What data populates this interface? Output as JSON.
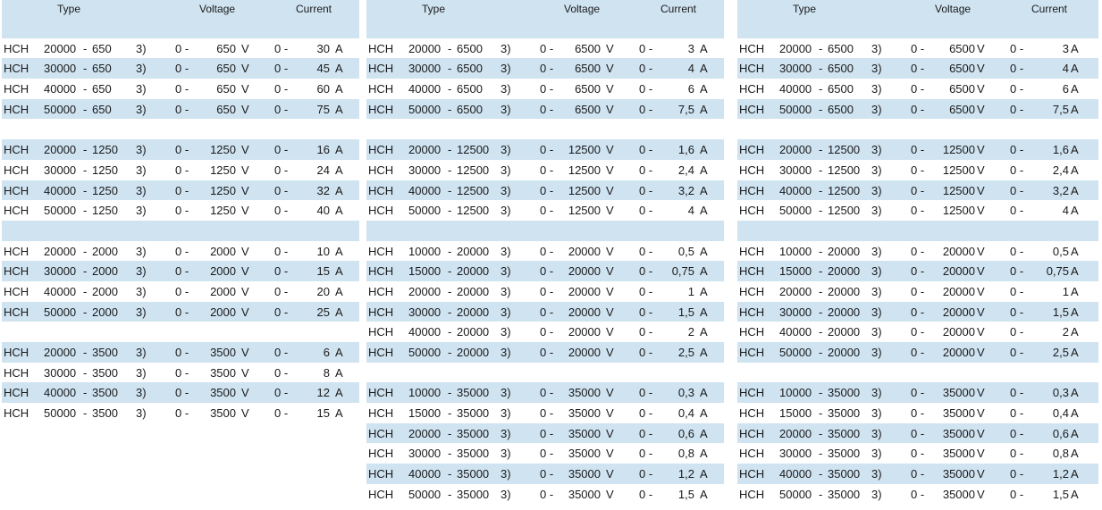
{
  "headers": {
    "type": "Type",
    "voltage": "Voltage",
    "current": "Current"
  },
  "panels": [
    {
      "rows": [
        {
          "k": "gap"
        },
        {
          "k": "data",
          "prefix": "HCH",
          "num": "20000",
          "dash": "-",
          "volt": "650",
          "suffix": "3)",
          "zero": "0 -",
          "vmax": "650",
          "vu": "V",
          "czero": "0 -",
          "cmax": "30",
          "cu": "A"
        },
        {
          "k": "data",
          "prefix": "HCH",
          "num": "30000",
          "dash": "-",
          "volt": "650",
          "suffix": "3)",
          "zero": "0 -",
          "vmax": "650",
          "vu": "V",
          "czero": "0 -",
          "cmax": "45",
          "cu": "A"
        },
        {
          "k": "data",
          "prefix": "HCH",
          "num": "40000",
          "dash": "-",
          "volt": "650",
          "suffix": "3)",
          "zero": "0 -",
          "vmax": "650",
          "vu": "V",
          "czero": "0 -",
          "cmax": "60",
          "cu": "A"
        },
        {
          "k": "data",
          "prefix": "HCH",
          "num": "50000",
          "dash": "-",
          "volt": "650",
          "suffix": "3)",
          "zero": "0 -",
          "vmax": "650",
          "vu": "V",
          "czero": "0 -",
          "cmax": "75",
          "cu": "A"
        },
        {
          "k": "gap"
        },
        {
          "k": "data",
          "prefix": "HCH",
          "num": "20000",
          "dash": "-",
          "volt": "1250",
          "suffix": "3)",
          "zero": "0 -",
          "vmax": "1250",
          "vu": "V",
          "czero": "0 -",
          "cmax": "16",
          "cu": "A"
        },
        {
          "k": "data",
          "prefix": "HCH",
          "num": "30000",
          "dash": "-",
          "volt": "1250",
          "suffix": "3)",
          "zero": "0 -",
          "vmax": "1250",
          "vu": "V",
          "czero": "0 -",
          "cmax": "24",
          "cu": "A"
        },
        {
          "k": "data",
          "prefix": "HCH",
          "num": "40000",
          "dash": "-",
          "volt": "1250",
          "suffix": "3)",
          "zero": "0 -",
          "vmax": "1250",
          "vu": "V",
          "czero": "0 -",
          "cmax": "32",
          "cu": "A"
        },
        {
          "k": "data",
          "prefix": "HCH",
          "num": "50000",
          "dash": "-",
          "volt": "1250",
          "suffix": "3)",
          "zero": "0 -",
          "vmax": "1250",
          "vu": "V",
          "czero": "0 -",
          "cmax": "40",
          "cu": "A"
        },
        {
          "k": "gap"
        },
        {
          "k": "data",
          "prefix": "HCH",
          "num": "20000",
          "dash": "-",
          "volt": "2000",
          "suffix": "3)",
          "zero": "0 -",
          "vmax": "2000",
          "vu": "V",
          "czero": "0 -",
          "cmax": "10",
          "cu": "A"
        },
        {
          "k": "data",
          "prefix": "HCH",
          "num": "30000",
          "dash": "-",
          "volt": "2000",
          "suffix": "3)",
          "zero": "0 -",
          "vmax": "2000",
          "vu": "V",
          "czero": "0 -",
          "cmax": "15",
          "cu": "A"
        },
        {
          "k": "data",
          "prefix": "HCH",
          "num": "40000",
          "dash": "-",
          "volt": "2000",
          "suffix": "3)",
          "zero": "0 -",
          "vmax": "2000",
          "vu": "V",
          "czero": "0 -",
          "cmax": "20",
          "cu": "A"
        },
        {
          "k": "data",
          "prefix": "HCH",
          "num": "50000",
          "dash": "-",
          "volt": "2000",
          "suffix": "3)",
          "zero": "0 -",
          "vmax": "2000",
          "vu": "V",
          "czero": "0 -",
          "cmax": "25",
          "cu": "A"
        },
        {
          "k": "gap"
        },
        {
          "k": "data",
          "prefix": "HCH",
          "num": "20000",
          "dash": "-",
          "volt": "3500",
          "suffix": "3)",
          "zero": "0 -",
          "vmax": "3500",
          "vu": "V",
          "czero": "0 -",
          "cmax": "6",
          "cu": "A"
        },
        {
          "k": "data",
          "prefix": "HCH",
          "num": "30000",
          "dash": "-",
          "volt": "3500",
          "suffix": "3)",
          "zero": "0 -",
          "vmax": "3500",
          "vu": "V",
          "czero": "0 -",
          "cmax": "8",
          "cu": "A"
        },
        {
          "k": "data",
          "prefix": "HCH",
          "num": "40000",
          "dash": "-",
          "volt": "3500",
          "suffix": "3)",
          "zero": "0 -",
          "vmax": "3500",
          "vu": "V",
          "czero": "0 -",
          "cmax": "12",
          "cu": "A"
        },
        {
          "k": "data",
          "prefix": "HCH",
          "num": "50000",
          "dash": "-",
          "volt": "3500",
          "suffix": "3)",
          "zero": "0 -",
          "vmax": "3500",
          "vu": "V",
          "czero": "0 -",
          "cmax": "15",
          "cu": "A"
        }
      ]
    },
    {
      "rows": [
        {
          "k": "gap"
        },
        {
          "k": "data",
          "prefix": "HCH",
          "num": "20000",
          "dash": "-",
          "volt": "6500",
          "suffix": "3)",
          "zero": "0 -",
          "vmax": "6500",
          "vu": "V",
          "czero": "0 -",
          "cmax": "3",
          "cu": "A"
        },
        {
          "k": "data",
          "prefix": "HCH",
          "num": "30000",
          "dash": "-",
          "volt": "6500",
          "suffix": "3)",
          "zero": "0 -",
          "vmax": "6500",
          "vu": "V",
          "czero": "0 -",
          "cmax": "4",
          "cu": "A"
        },
        {
          "k": "data",
          "prefix": "HCH",
          "num": "40000",
          "dash": "-",
          "volt": "6500",
          "suffix": "3)",
          "zero": "0 -",
          "vmax": "6500",
          "vu": "V",
          "czero": "0 -",
          "cmax": "6",
          "cu": "A"
        },
        {
          "k": "data",
          "prefix": "HCH",
          "num": "50000",
          "dash": "-",
          "volt": "6500",
          "suffix": "3)",
          "zero": "0 -",
          "vmax": "6500",
          "vu": "V",
          "czero": "0 -",
          "cmax": "7,5",
          "cu": "A"
        },
        {
          "k": "gap"
        },
        {
          "k": "data",
          "prefix": "HCH",
          "num": "20000",
          "dash": "-",
          "volt": "12500",
          "suffix": "3)",
          "zero": "0 -",
          "vmax": "12500",
          "vu": "V",
          "czero": "0 -",
          "cmax": "1,6",
          "cu": "A"
        },
        {
          "k": "data",
          "prefix": "HCH",
          "num": "30000",
          "dash": "-",
          "volt": "12500",
          "suffix": "3)",
          "zero": "0 -",
          "vmax": "12500",
          "vu": "V",
          "czero": "0 -",
          "cmax": "2,4",
          "cu": "A"
        },
        {
          "k": "data",
          "prefix": "HCH",
          "num": "40000",
          "dash": "-",
          "volt": "12500",
          "suffix": "3)",
          "zero": "0 -",
          "vmax": "12500",
          "vu": "V",
          "czero": "0 -",
          "cmax": "3,2",
          "cu": "A"
        },
        {
          "k": "data",
          "prefix": "HCH",
          "num": "50000",
          "dash": "-",
          "volt": "12500",
          "suffix": "3)",
          "zero": "0 -",
          "vmax": "12500",
          "vu": "V",
          "czero": "0 -",
          "cmax": "4",
          "cu": "A"
        },
        {
          "k": "gap"
        },
        {
          "k": "data",
          "prefix": "HCH",
          "num": "10000",
          "dash": "-",
          "volt": "20000",
          "suffix": "3)",
          "zero": "0 -",
          "vmax": "20000",
          "vu": "V",
          "czero": "0 -",
          "cmax": "0,5",
          "cu": "A"
        },
        {
          "k": "data",
          "prefix": "HCH",
          "num": "15000",
          "dash": "-",
          "volt": "20000",
          "suffix": "3)",
          "zero": "0 -",
          "vmax": "20000",
          "vu": "V",
          "czero": "0 -",
          "cmax": "0,75",
          "cu": "A"
        },
        {
          "k": "data",
          "prefix": "HCH",
          "num": "20000",
          "dash": "-",
          "volt": "20000",
          "suffix": "3)",
          "zero": "0 -",
          "vmax": "20000",
          "vu": "V",
          "czero": "0 -",
          "cmax": "1",
          "cu": "A"
        },
        {
          "k": "data",
          "prefix": "HCH",
          "num": "30000",
          "dash": "-",
          "volt": "20000",
          "suffix": "3)",
          "zero": "0 -",
          "vmax": "20000",
          "vu": "V",
          "czero": "0 -",
          "cmax": "1,5",
          "cu": "A"
        },
        {
          "k": "data",
          "prefix": "HCH",
          "num": "40000",
          "dash": "-",
          "volt": "20000",
          "suffix": "3)",
          "zero": "0 -",
          "vmax": "20000",
          "vu": "V",
          "czero": "0 -",
          "cmax": "2",
          "cu": "A"
        },
        {
          "k": "data",
          "prefix": "HCH",
          "num": "50000",
          "dash": "-",
          "volt": "20000",
          "suffix": "3)",
          "zero": "0 -",
          "vmax": "20000",
          "vu": "V",
          "czero": "0 -",
          "cmax": "2,5",
          "cu": "A"
        },
        {
          "k": "gap"
        },
        {
          "k": "data",
          "prefix": "HCH",
          "num": "10000",
          "dash": "-",
          "volt": "35000",
          "suffix": "3)",
          "zero": "0 -",
          "vmax": "35000",
          "vu": "V",
          "czero": "0 -",
          "cmax": "0,3",
          "cu": "A"
        },
        {
          "k": "data",
          "prefix": "HCH",
          "num": "15000",
          "dash": "-",
          "volt": "35000",
          "suffix": "3)",
          "zero": "0 -",
          "vmax": "35000",
          "vu": "V",
          "czero": "0 -",
          "cmax": "0,4",
          "cu": "A"
        },
        {
          "k": "data",
          "prefix": "HCH",
          "num": "20000",
          "dash": "-",
          "volt": "35000",
          "suffix": "3)",
          "zero": "0 -",
          "vmax": "35000",
          "vu": "V",
          "czero": "0 -",
          "cmax": "0,6",
          "cu": "A"
        },
        {
          "k": "data",
          "prefix": "HCH",
          "num": "30000",
          "dash": "-",
          "volt": "35000",
          "suffix": "3)",
          "zero": "0 -",
          "vmax": "35000",
          "vu": "V",
          "czero": "0 -",
          "cmax": "0,8",
          "cu": "A"
        },
        {
          "k": "data",
          "prefix": "HCH",
          "num": "40000",
          "dash": "-",
          "volt": "35000",
          "suffix": "3)",
          "zero": "0 -",
          "vmax": "35000",
          "vu": "V",
          "czero": "0 -",
          "cmax": "1,2",
          "cu": "A"
        },
        {
          "k": "data",
          "prefix": "HCH",
          "num": "50000",
          "dash": "-",
          "volt": "35000",
          "suffix": "3)",
          "zero": "0 -",
          "vmax": "35000",
          "vu": "V",
          "czero": "0 -",
          "cmax": "1,5",
          "cu": "A"
        }
      ]
    },
    {
      "rows": [
        {
          "k": "gap"
        },
        {
          "k": "data",
          "prefix": "HCH",
          "num": "20000",
          "dash": "-",
          "volt": "6500",
          "suffix": "3)",
          "zero": "0 -",
          "vmax": "6500",
          "vu": "V",
          "czero": "0 -",
          "cmax": "3",
          "cu": "A"
        },
        {
          "k": "data",
          "prefix": "HCH",
          "num": "30000",
          "dash": "-",
          "volt": "6500",
          "suffix": "3)",
          "zero": "0 -",
          "vmax": "6500",
          "vu": "V",
          "czero": "0 -",
          "cmax": "4",
          "cu": "A"
        },
        {
          "k": "data",
          "prefix": "HCH",
          "num": "40000",
          "dash": "-",
          "volt": "6500",
          "suffix": "3)",
          "zero": "0 -",
          "vmax": "6500",
          "vu": "V",
          "czero": "0 -",
          "cmax": "6",
          "cu": "A"
        },
        {
          "k": "data",
          "prefix": "HCH",
          "num": "50000",
          "dash": "-",
          "volt": "6500",
          "suffix": "3)",
          "zero": "0 -",
          "vmax": "6500",
          "vu": "V",
          "czero": "0 -",
          "cmax": "7,5",
          "cu": "A"
        },
        {
          "k": "gap"
        },
        {
          "k": "data",
          "prefix": "HCH",
          "num": "20000",
          "dash": "-",
          "volt": "12500",
          "suffix": "3)",
          "zero": "0 -",
          "vmax": "12500",
          "vu": "V",
          "czero": "0 -",
          "cmax": "1,6",
          "cu": "A"
        },
        {
          "k": "data",
          "prefix": "HCH",
          "num": "30000",
          "dash": "-",
          "volt": "12500",
          "suffix": "3)",
          "zero": "0 -",
          "vmax": "12500",
          "vu": "V",
          "czero": "0 -",
          "cmax": "2,4",
          "cu": "A"
        },
        {
          "k": "data",
          "prefix": "HCH",
          "num": "40000",
          "dash": "-",
          "volt": "12500",
          "suffix": "3)",
          "zero": "0 -",
          "vmax": "12500",
          "vu": "V",
          "czero": "0 -",
          "cmax": "3,2",
          "cu": "A"
        },
        {
          "k": "data",
          "prefix": "HCH",
          "num": "50000",
          "dash": "-",
          "volt": "12500",
          "suffix": "3)",
          "zero": "0 -",
          "vmax": "12500",
          "vu": "V",
          "czero": "0 -",
          "cmax": "4",
          "cu": "A"
        },
        {
          "k": "gap"
        },
        {
          "k": "data",
          "prefix": "HCH",
          "num": "10000",
          "dash": "-",
          "volt": "20000",
          "suffix": "3)",
          "zero": "0 -",
          "vmax": "20000",
          "vu": "V",
          "czero": "0 -",
          "cmax": "0,5",
          "cu": "A"
        },
        {
          "k": "data",
          "prefix": "HCH",
          "num": "15000",
          "dash": "-",
          "volt": "20000",
          "suffix": "3)",
          "zero": "0 -",
          "vmax": "20000",
          "vu": "V",
          "czero": "0 -",
          "cmax": "0,75",
          "cu": "A"
        },
        {
          "k": "data",
          "prefix": "HCH",
          "num": "20000",
          "dash": "-",
          "volt": "20000",
          "suffix": "3)",
          "zero": "0 -",
          "vmax": "20000",
          "vu": "V",
          "czero": "0 -",
          "cmax": "1",
          "cu": "A"
        },
        {
          "k": "data",
          "prefix": "HCH",
          "num": "30000",
          "dash": "-",
          "volt": "20000",
          "suffix": "3)",
          "zero": "0 -",
          "vmax": "20000",
          "vu": "V",
          "czero": "0 -",
          "cmax": "1,5",
          "cu": "A"
        },
        {
          "k": "data",
          "prefix": "HCH",
          "num": "40000",
          "dash": "-",
          "volt": "20000",
          "suffix": "3)",
          "zero": "0 -",
          "vmax": "20000",
          "vu": "V",
          "czero": "0 -",
          "cmax": "2",
          "cu": "A"
        },
        {
          "k": "data",
          "prefix": "HCH",
          "num": "50000",
          "dash": "-",
          "volt": "20000",
          "suffix": "3)",
          "zero": "0 -",
          "vmax": "20000",
          "vu": "V",
          "czero": "0 -",
          "cmax": "2,5",
          "cu": "A"
        },
        {
          "k": "gap"
        },
        {
          "k": "data",
          "prefix": "HCH",
          "num": "10000",
          "dash": "-",
          "volt": "35000",
          "suffix": "3)",
          "zero": "0 -",
          "vmax": "35000",
          "vu": "V",
          "czero": "0 -",
          "cmax": "0,3",
          "cu": "A"
        },
        {
          "k": "data",
          "prefix": "HCH",
          "num": "15000",
          "dash": "-",
          "volt": "35000",
          "suffix": "3)",
          "zero": "0 -",
          "vmax": "35000",
          "vu": "V",
          "czero": "0 -",
          "cmax": "0,4",
          "cu": "A"
        },
        {
          "k": "data",
          "prefix": "HCH",
          "num": "20000",
          "dash": "-",
          "volt": "35000",
          "suffix": "3)",
          "zero": "0 -",
          "vmax": "35000",
          "vu": "V",
          "czero": "0 -",
          "cmax": "0,6",
          "cu": "A"
        },
        {
          "k": "data",
          "prefix": "HCH",
          "num": "30000",
          "dash": "-",
          "volt": "35000",
          "suffix": "3)",
          "zero": "0 -",
          "vmax": "35000",
          "vu": "V",
          "czero": "0 -",
          "cmax": "0,8",
          "cu": "A"
        },
        {
          "k": "data",
          "prefix": "HCH",
          "num": "40000",
          "dash": "-",
          "volt": "35000",
          "suffix": "3)",
          "zero": "0 -",
          "vmax": "35000",
          "vu": "V",
          "czero": "0 -",
          "cmax": "1,2",
          "cu": "A"
        },
        {
          "k": "data",
          "prefix": "HCH",
          "num": "50000",
          "dash": "-",
          "volt": "35000",
          "suffix": "3)",
          "zero": "0 -",
          "vmax": "35000",
          "vu": "V",
          "czero": "0 -",
          "cmax": "1,5",
          "cu": "A"
        }
      ]
    }
  ]
}
